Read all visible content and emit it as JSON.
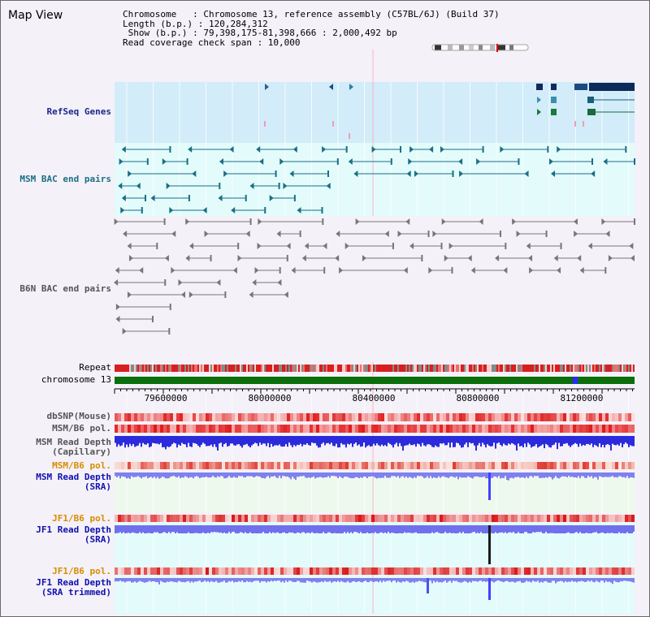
{
  "title": "Map View",
  "header": {
    "chromosome": "Chromosome   : Chromosome 13, reference assembly (C57BL/6J) (Build 37)",
    "length": "Length (b.p.) : 120,284,312",
    "show": " Show (b.p.) : 79,398,175-81,398,666 : 2,000,492 bp",
    "coverage": "Read coverage check span : 10,000"
  },
  "tracks": {
    "refseq": "RefSeq Genes",
    "msm_bac": "MSM BAC end pairs",
    "b6n_bac": "B6N BAC end pairs",
    "repeat": "Repeat",
    "chromosome": "chromosome 13",
    "dbsnp": "dbSNP(Mouse)",
    "msm_b6_pol": "MSM/B6 pol.",
    "msm_depth_cap": "MSM Read Depth\n(Capillary)",
    "msm_b6_pol2": "MSM/B6 pol.",
    "msm_depth_sra": "MSM Read Depth\n(SRA)",
    "jf1_b6_pol": "JF1/B6 pol.",
    "jf1_depth_sra": "JF1 Read Depth\n(SRA)",
    "jf1_b6_pol2": "JF1/B6 pol.",
    "jf1_depth_trim": "JF1 Read Depth\n(SRA trimmed)"
  },
  "ruler": {
    "ticks": [
      "79600000",
      "80000000",
      "80400000",
      "80800000",
      "81200000"
    ],
    "tick_positions": [
      79600000,
      80000000,
      80400000,
      80800000,
      81200000
    ],
    "start": 79398175,
    "end": 81398666
  },
  "colors": {
    "refseq_bg": "#d2ecf9",
    "msm_bg": "#e3fbfb",
    "b6n_bg": "#f4f1f8",
    "chromosome": "#0a6e0a",
    "msm_sra_bg": "#eef9ee",
    "jf1_bg": "#e3fbfb"
  }
}
